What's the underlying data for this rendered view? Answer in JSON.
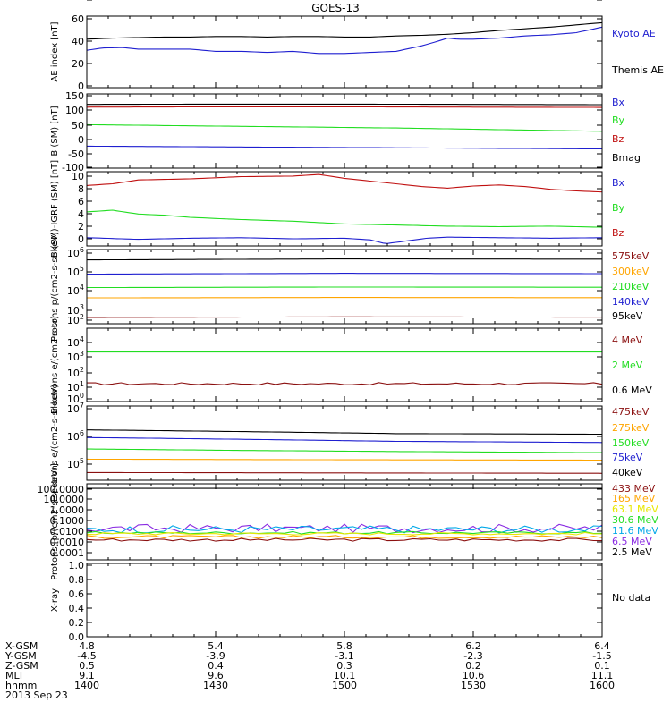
{
  "title": "GOES-13",
  "colors": {
    "black": "#000000",
    "blue": "#1f1fd0",
    "green": "#22dd22",
    "red": "#c01010",
    "darkred": "#8b1010",
    "orange": "#ffa500",
    "cyan": "#00a8e8",
    "yellow": "#e8e800",
    "purple": "#8a2be2"
  },
  "chart_data": [
    {
      "type": "line",
      "ylabel": "AE index [nT]",
      "yticks": [
        "60",
        "40",
        "20",
        "0"
      ],
      "ylim": [
        0,
        65
      ],
      "legend": [
        {
          "name": "Kyoto AE",
          "color": "blue"
        },
        {
          "name": "Themis AE",
          "color": "black"
        }
      ],
      "series": [
        {
          "name": "Themis AE",
          "color": "black",
          "x": [
            0,
            0.05,
            0.1,
            0.15,
            0.2,
            0.25,
            0.3,
            0.35,
            0.4,
            0.45,
            0.5,
            0.55,
            0.6,
            0.65,
            0.7,
            0.75,
            0.8,
            0.85,
            0.9,
            0.95,
            1.0
          ],
          "y": [
            44,
            45,
            45.5,
            46,
            46,
            46.5,
            46.5,
            46,
            46.5,
            46.5,
            46,
            46,
            47,
            47.5,
            48.5,
            50,
            52,
            53.5,
            55,
            57,
            59
          ]
        },
        {
          "name": "Kyoto AE",
          "color": "blue",
          "x": [
            0,
            0.03,
            0.07,
            0.1,
            0.15,
            0.2,
            0.25,
            0.3,
            0.35,
            0.4,
            0.45,
            0.5,
            0.55,
            0.6,
            0.62,
            0.65,
            0.68,
            0.7,
            0.72,
            0.75,
            0.8,
            0.85,
            0.9,
            0.95,
            1.0
          ],
          "y": [
            34,
            36,
            36.5,
            35,
            35,
            35,
            33,
            33,
            32,
            33,
            31,
            31,
            32,
            33,
            35,
            38,
            42,
            45,
            44,
            44,
            45,
            47,
            48,
            50,
            55
          ]
        }
      ]
    },
    {
      "type": "line",
      "ylabel": "B (SM) [nT]",
      "yticks": [
        "150",
        "100",
        "50",
        "0",
        "-50",
        "-100"
      ],
      "ylim": [
        -120,
        150
      ],
      "legend": [
        {
          "name": "Bx",
          "color": "blue"
        },
        {
          "name": "By",
          "color": "green"
        },
        {
          "name": "Bz",
          "color": "red"
        },
        {
          "name": "Bmag",
          "color": "black"
        }
      ],
      "series": [
        {
          "name": "Bmag",
          "color": "black",
          "x": [
            0,
            0.25,
            0.5,
            0.75,
            1.0
          ],
          "y": [
            112,
            113,
            113,
            112,
            111
          ]
        },
        {
          "name": "Bz",
          "color": "red",
          "x": [
            0,
            0.25,
            0.5,
            0.75,
            1.0
          ],
          "y": [
            102,
            103,
            103,
            102,
            101
          ]
        },
        {
          "name": "By",
          "color": "green",
          "x": [
            0,
            0.2,
            0.4,
            0.6,
            0.8,
            1.0
          ],
          "y": [
            38,
            34,
            30,
            26,
            20,
            14
          ]
        },
        {
          "name": "Bx",
          "color": "blue",
          "x": [
            0,
            0.2,
            0.4,
            0.6,
            0.8,
            1.0
          ],
          "y": [
            -40,
            -42,
            -44,
            -46,
            -48,
            -50
          ]
        }
      ]
    },
    {
      "type": "line",
      "ylabel": "B (SM)-IGRF (SM) [nT]",
      "yticks": [
        "10",
        "8",
        "6",
        "4",
        "2",
        "0",
        "-2"
      ],
      "ylim": [
        -3,
        10.5
      ],
      "legend": [
        {
          "name": "Bx",
          "color": "blue"
        },
        {
          "name": "By",
          "color": "green"
        },
        {
          "name": "Bz",
          "color": "red"
        }
      ],
      "series": [
        {
          "name": "Bz",
          "color": "red",
          "x": [
            0,
            0.05,
            0.1,
            0.2,
            0.3,
            0.4,
            0.45,
            0.5,
            0.55,
            0.6,
            0.65,
            0.7,
            0.75,
            0.8,
            0.85,
            0.9,
            0.95,
            1.0
          ],
          "y": [
            8,
            8.3,
            9,
            9.2,
            9.6,
            9.7,
            10,
            9.3,
            8.8,
            8.3,
            7.8,
            7.5,
            7.9,
            8.1,
            7.8,
            7.3,
            7,
            6.8
          ]
        },
        {
          "name": "By",
          "color": "green",
          "x": [
            0,
            0.05,
            0.1,
            0.15,
            0.2,
            0.3,
            0.4,
            0.5,
            0.6,
            0.7,
            0.8,
            0.9,
            1.0
          ],
          "y": [
            3.2,
            3.5,
            2.8,
            2.6,
            2.2,
            1.8,
            1.5,
            1,
            0.8,
            0.6,
            0.5,
            0.6,
            0.4
          ]
        },
        {
          "name": "Bx",
          "color": "blue",
          "x": [
            0,
            0.1,
            0.2,
            0.3,
            0.4,
            0.5,
            0.55,
            0.58,
            0.62,
            0.66,
            0.7,
            0.8,
            0.9,
            1.0
          ],
          "y": [
            -1.5,
            -1.8,
            -1.6,
            -1.5,
            -1.7,
            -1.6,
            -1.9,
            -2.6,
            -2.1,
            -1.6,
            -1.4,
            -1.5,
            -1.6,
            -1.5
          ]
        }
      ]
    },
    {
      "type": "line",
      "ylabel": "Protons p/(cm2-s-sr-keV)",
      "yscale": "log",
      "yticks": [
        {
          "b": "10",
          "e": "6"
        },
        {
          "b": "10",
          "e": "5"
        },
        {
          "b": "10",
          "e": "4"
        },
        {
          "b": "10",
          "e": "3"
        },
        {
          "b": "10",
          "e": "2"
        }
      ],
      "ylim": [
        60,
        1200000
      ],
      "legend": [
        {
          "name": "575keV",
          "color": "darkred"
        },
        {
          "name": "300keV",
          "color": "orange"
        },
        {
          "name": "210keV",
          "color": "green"
        },
        {
          "name": "140keV",
          "color": "blue"
        },
        {
          "name": "95keV",
          "color": "black"
        }
      ],
      "series": [
        {
          "name": "95keV",
          "color": "black",
          "x": [
            0,
            0.5,
            1.0
          ],
          "y": [
            300000,
            340000,
            330000
          ]
        },
        {
          "name": "140keV",
          "color": "blue",
          "x": [
            0,
            0.5,
            1.0
          ],
          "y": [
            45000,
            50000,
            48000
          ]
        },
        {
          "name": "210keV",
          "color": "green",
          "x": [
            0,
            0.5,
            1.0
          ],
          "y": [
            7500,
            8000,
            7800
          ]
        },
        {
          "name": "300keV",
          "color": "orange",
          "x": [
            0,
            0.5,
            1.0
          ],
          "y": [
            1900,
            2000,
            1950
          ]
        },
        {
          "name": "575keV",
          "color": "darkred",
          "x": [
            0,
            0.5,
            1.0
          ],
          "y": [
            140,
            150,
            145
          ]
        }
      ]
    },
    {
      "type": "line",
      "ylabel": "Electrons e/(cm2-s-sr)",
      "yscale": "log",
      "yticks": [
        {
          "b": "10",
          "e": "4"
        },
        {
          "b": "10",
          "e": "3"
        },
        {
          "b": "10",
          "e": "2"
        },
        {
          "b": "10",
          "e": "1"
        },
        {
          "b": "10",
          "e": "0"
        }
      ],
      "ylim": [
        0.7,
        60000
      ],
      "legend": [
        {
          "name": "4 MeV",
          "color": "darkred"
        },
        {
          "name": "2 MeV",
          "color": "green"
        },
        {
          "name": "0.6 MeV",
          "color": "black"
        }
      ],
      "series": [
        {
          "name": "2 MeV",
          "color": "green",
          "x": [
            0,
            0.5,
            1.0
          ],
          "y": [
            1500,
            1500,
            1500
          ]
        },
        {
          "name": "4 MeV",
          "color": "darkred",
          "noise": 0.08,
          "x": [
            0,
            0.5,
            1.0
          ],
          "y": [
            11,
            11,
            11
          ]
        }
      ]
    },
    {
      "type": "line",
      "ylabel": "Electrons e/(cm2-s-sr-keV)",
      "yscale": "log",
      "yticks": [
        {
          "b": "10",
          "e": "7"
        },
        {
          "b": "10",
          "e": "6"
        },
        {
          "b": "10",
          "e": "5"
        }
      ],
      "ylim": [
        15000,
        12000000
      ],
      "legend": [
        {
          "name": "475keV",
          "color": "darkred"
        },
        {
          "name": "275keV",
          "color": "orange"
        },
        {
          "name": "150keV",
          "color": "green"
        },
        {
          "name": "75keV",
          "color": "blue"
        },
        {
          "name": "40keV",
          "color": "black"
        }
      ],
      "series": [
        {
          "name": "40keV",
          "color": "black",
          "x": [
            0,
            0.3,
            0.6,
            1.0
          ],
          "y": [
            1400000,
            1200000,
            1000000,
            950000
          ]
        },
        {
          "name": "75keV",
          "color": "blue",
          "x": [
            0,
            0.3,
            0.6,
            1.0
          ],
          "y": [
            700000,
            600000,
            500000,
            450000
          ]
        },
        {
          "name": "150keV",
          "color": "green",
          "x": [
            0,
            0.3,
            0.6,
            1.0
          ],
          "y": [
            250000,
            220000,
            200000,
            180000
          ]
        },
        {
          "name": "275keV",
          "color": "orange",
          "x": [
            0,
            0.5,
            1.0
          ],
          "y": [
            100000,
            95000,
            92000
          ]
        },
        {
          "name": "475keV",
          "color": "darkred",
          "x": [
            0,
            0.5,
            1.0
          ],
          "y": [
            30000,
            29000,
            28000
          ]
        }
      ]
    },
    {
      "type": "line",
      "ylabel": "Protons [p/(cm2-s-sr-keV)]",
      "yscale": "log",
      "yticks": [
        "100.0000",
        "10.0000",
        "1.0000",
        "0.1000",
        "0.0100",
        "0.0010",
        "0.0001"
      ],
      "ylim": [
        8e-05,
        130
      ],
      "legend": [
        {
          "name": "433 MeV",
          "color": "darkred"
        },
        {
          "name": "165 MeV",
          "color": "orange"
        },
        {
          "name": "63.1 MeV",
          "color": "yellow"
        },
        {
          "name": "30.6 MeV",
          "color": "green"
        },
        {
          "name": "11.6 MeV",
          "color": "cyan"
        },
        {
          "name": "6.5 MeV",
          "color": "purple"
        },
        {
          "name": "2.5 MeV",
          "color": "black"
        }
      ],
      "series": [
        {
          "name": "2.5 MeV",
          "color": "black",
          "x": [
            0,
            0.5,
            1.0
          ],
          "y": [
            55,
            55,
            55
          ]
        },
        {
          "name": "6.5 MeV",
          "color": "purple",
          "noise": 0.35,
          "x": [
            0,
            0.5,
            1.0
          ],
          "y": [
            0.03,
            0.03,
            0.03
          ]
        },
        {
          "name": "11.6 MeV",
          "color": "cyan",
          "noise": 0.3,
          "x": [
            0,
            0.5,
            1.0
          ],
          "y": [
            0.025,
            0.025,
            0.025
          ]
        },
        {
          "name": "30.6 MeV",
          "color": "green",
          "noise": 0.1,
          "x": [
            0,
            0.5,
            1.0
          ],
          "y": [
            0.013,
            0.013,
            0.013
          ]
        },
        {
          "name": "63.1 MeV",
          "color": "yellow",
          "noise": 0.1,
          "x": [
            0,
            0.5,
            1.0
          ],
          "y": [
            0.011,
            0.011,
            0.011
          ]
        },
        {
          "name": "165 MeV",
          "color": "orange",
          "noise": 0.12,
          "x": [
            0,
            0.5,
            1.0
          ],
          "y": [
            0.006,
            0.006,
            0.006
          ]
        },
        {
          "name": "433 MeV",
          "color": "darkred",
          "noise": 0.12,
          "x": [
            0,
            0.5,
            1.0
          ],
          "y": [
            0.0035,
            0.0035,
            0.0035
          ]
        }
      ]
    },
    {
      "type": "line",
      "ylabel": "X-ray",
      "yticks": [
        "1.0",
        "0.8",
        "0.6",
        "0.4",
        "0.2",
        "0.0"
      ],
      "ylim": [
        0,
        1.0
      ],
      "legend": [
        {
          "name": "No data",
          "color": "black"
        }
      ],
      "series": []
    }
  ],
  "xaxis": {
    "rows": [
      {
        "label": "X-GSM",
        "values": [
          "4.8",
          "5.4",
          "5.8",
          "6.2",
          "6.4"
        ]
      },
      {
        "label": "Y-GSM",
        "values": [
          "-4.5",
          "-3.9",
          "-3.1",
          "-2.3",
          "-1.5"
        ]
      },
      {
        "label": "Z-GSM",
        "values": [
          "0.5",
          "0.4",
          "0.3",
          "0.2",
          "0.1"
        ]
      },
      {
        "label": "MLT",
        "values": [
          "9.1",
          "9.6",
          "10.1",
          "10.6",
          "11.1"
        ]
      },
      {
        "label": "hhmm",
        "values": [
          "1400",
          "1430",
          "1500",
          "1530",
          "1600"
        ]
      }
    ],
    "date": "2013 Sep 23"
  }
}
